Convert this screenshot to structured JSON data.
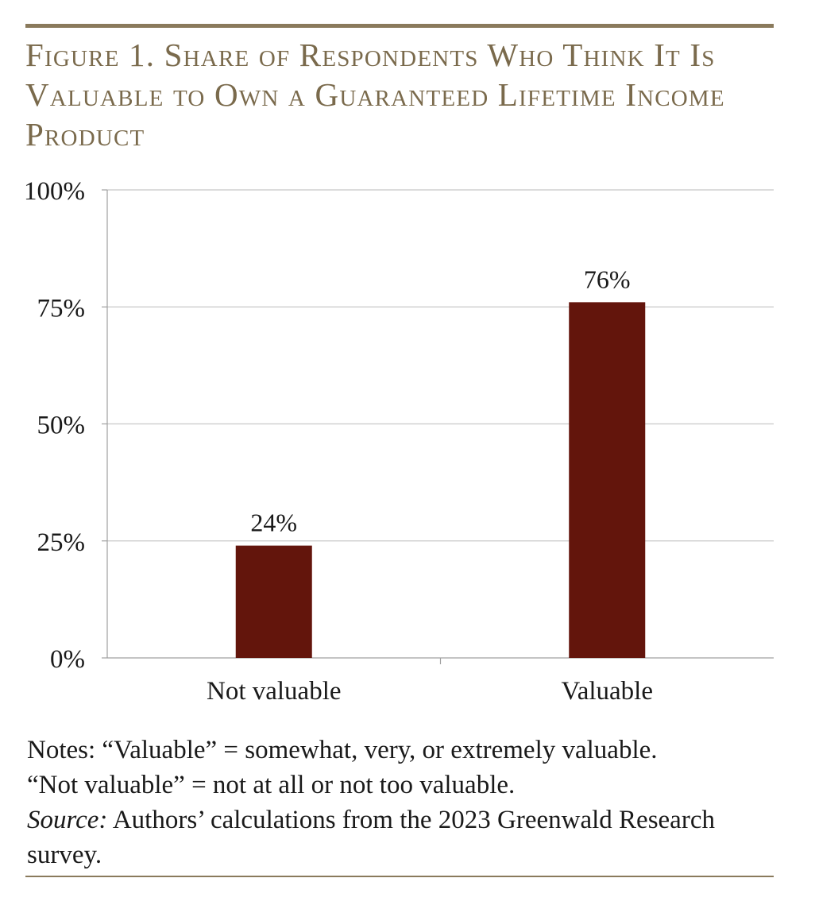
{
  "figure": {
    "title": "Figure 1. Share of Respondents Who Think It Is Valuable to Own a Guaranteed Lifetime Income Product"
  },
  "notes": {
    "line1": "Notes: “Valuable” = somewhat, very, or extremely valuable.",
    "line2": "“Not valuable” = not at all or not too valuable.",
    "source_label": "Source:",
    "source_text": " Authors’ calculations from the 2023 Greenwald Research survey."
  },
  "colors": {
    "bar": "#63150c",
    "grid": "#c8c8c8",
    "title": "#7a6a4c",
    "rule": "#8a7a5c"
  },
  "chart_data": {
    "type": "bar",
    "title": "",
    "xlabel": "",
    "ylabel": "",
    "categories": [
      "Not valuable",
      "Valuable"
    ],
    "values": [
      24,
      76
    ],
    "data_labels": [
      "24%",
      "76%"
    ],
    "ylim": [
      0,
      100
    ],
    "yticks": [
      0,
      25,
      50,
      75,
      100
    ],
    "ytick_labels": [
      "0%",
      "25%",
      "50%",
      "75%",
      "100%"
    ],
    "grid": true,
    "legend": "none"
  }
}
